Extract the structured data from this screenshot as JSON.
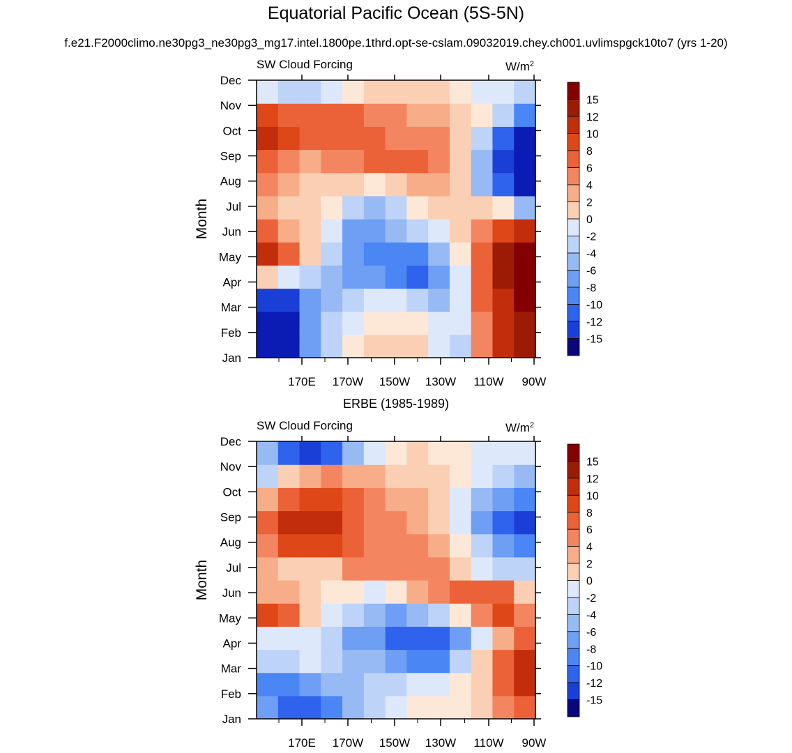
{
  "title": "Equatorial Pacific Ocean (5S-5N)",
  "subtitle": "f.e21.F2000climo.ne30pg3_ne30pg3_mg17.intel.1800pe.1thrd.opt-se-cslam.09032019.chey.ch001.uvlimspgck10to7 (yrs 1-20)",
  "colors": {
    "palette": [
      "#08087a",
      "#0a1cb4",
      "#1a3fd6",
      "#2f63ee",
      "#4b86f5",
      "#6f9ff5",
      "#97baf5",
      "#bdd3f7",
      "#dde9fb",
      "#fde8d8",
      "#fbcfb3",
      "#f8ad89",
      "#f38660",
      "#ec6238",
      "#de4717",
      "#c22e0c",
      "#9c1b05",
      "#820000"
    ]
  },
  "chart_data": [
    {
      "type": "heatmap",
      "panel_label": "",
      "left_label": "SW Cloud Forcing",
      "units_text": "W/m",
      "units_sup": "2",
      "ylabel": "Month",
      "xlabel": "",
      "x_ticks": [
        "170E",
        "170W",
        "150W",
        "130W",
        "110W",
        "90W"
      ],
      "x_range": [
        "150E",
        "90W"
      ],
      "y_ticks": [
        "Jan",
        "Feb",
        "Mar",
        "Apr",
        "May",
        "Jun",
        "Jul",
        "Aug",
        "Sep",
        "Oct",
        "Nov",
        "Dec"
      ],
      "colorbar_levels": [
        "15",
        "12",
        "10",
        "8",
        "6",
        "4",
        "2",
        "0",
        "-2",
        "-4",
        "-6",
        "-8",
        "-10",
        "-12",
        "-15"
      ],
      "x": [
        "150E",
        "160E",
        "170E",
        "180",
        "170W",
        "160W",
        "150W",
        "140W",
        "130W",
        "120W",
        "110W",
        "100W",
        "90W"
      ],
      "rows": [
        [
          -16,
          -16,
          -7,
          -3,
          0,
          2,
          2,
          2,
          -1,
          -3,
          6,
          12,
          16
        ],
        [
          -16,
          -16,
          -8,
          -4,
          -1,
          1,
          1,
          0,
          -2,
          -1,
          7,
          13,
          16
        ],
        [
          -15,
          -14,
          -8,
          -5,
          -3,
          -2,
          -2,
          -4,
          -5,
          -1,
          8,
          14,
          17
        ],
        [
          2,
          -1,
          -4,
          -6,
          -7,
          -8,
          -10,
          -11,
          -8,
          -2,
          9,
          16,
          17
        ],
        [
          13,
          8,
          2,
          -3,
          -8,
          -10,
          -10,
          -9,
          -6,
          0,
          9,
          16,
          17
        ],
        [
          8,
          5,
          3,
          -2,
          -8,
          -8,
          -6,
          -4,
          -2,
          2,
          7,
          11,
          13
        ],
        [
          4,
          3,
          3,
          1,
          -3,
          -5,
          -3,
          0,
          2,
          2,
          2,
          0,
          -6
        ],
        [
          7,
          5,
          3,
          3,
          2,
          0,
          2,
          4,
          4,
          2,
          -6,
          -12,
          -16
        ],
        [
          8,
          6,
          5,
          6,
          7,
          8,
          9,
          8,
          6,
          2,
          -6,
          -14,
          -16
        ],
        [
          13,
          11,
          9,
          9,
          8,
          8,
          7,
          7,
          6,
          3,
          -4,
          -12,
          -16
        ],
        [
          10,
          9,
          9,
          9,
          8,
          7,
          6,
          5,
          4,
          2,
          0,
          -4,
          -10
        ],
        [
          -2,
          -3,
          -3,
          -1,
          1,
          2,
          3,
          3,
          2,
          1,
          -1,
          -2,
          -4
        ]
      ]
    },
    {
      "type": "heatmap",
      "panel_label": "ERBE (1985-1989)",
      "left_label": "SW Cloud Forcing",
      "units_text": "W/m",
      "units_sup": "2",
      "ylabel": "Month",
      "xlabel": "",
      "x_ticks": [
        "170E",
        "170W",
        "150W",
        "130W",
        "110W",
        "90W"
      ],
      "x_range": [
        "150E",
        "90W"
      ],
      "y_ticks": [
        "Jan",
        "Feb",
        "Mar",
        "Apr",
        "May",
        "Jun",
        "Jul",
        "Aug",
        "Sep",
        "Oct",
        "Nov",
        "Dec"
      ],
      "colorbar_levels": [
        "15",
        "12",
        "10",
        "8",
        "6",
        "4",
        "2",
        "0",
        "-2",
        "-4",
        "-6",
        "-8",
        "-10",
        "-12",
        "-15"
      ],
      "x": [
        "150E",
        "160E",
        "170E",
        "180",
        "170W",
        "160W",
        "150W",
        "140W",
        "130W",
        "120W",
        "110W",
        "100W",
        "90W"
      ],
      "rows": [
        [
          -8,
          -12,
          -11,
          -9,
          -6,
          -3,
          -1,
          1,
          1,
          1,
          3,
          6,
          8
        ],
        [
          -9,
          -10,
          -7,
          -5,
          -5,
          -4,
          -3,
          -2,
          -1,
          0,
          3,
          8,
          12
        ],
        [
          -4,
          -3,
          -2,
          -3,
          -5,
          -6,
          -8,
          -9,
          -9,
          -4,
          2,
          8,
          13
        ],
        [
          -2,
          -1,
          -1,
          -3,
          -7,
          -8,
          -11,
          -12,
          -12,
          -8,
          -1,
          5,
          9
        ],
        [
          10,
          8,
          3,
          -2,
          -4,
          -6,
          -7,
          -6,
          -4,
          0,
          6,
          11,
          7
        ],
        [
          4,
          5,
          3,
          1,
          0,
          -2,
          1,
          4,
          6,
          8,
          9,
          9,
          3
        ],
        [
          5,
          3,
          3,
          3,
          6,
          7,
          7,
          7,
          6,
          3,
          -1,
          -3,
          -4
        ],
        [
          7,
          10,
          11,
          10,
          8,
          7,
          6,
          6,
          4,
          0,
          -4,
          -8,
          -9
        ],
        [
          8,
          12,
          12,
          12,
          8,
          7,
          6,
          5,
          3,
          -2,
          -8,
          -11,
          -13
        ],
        [
          5,
          8,
          10,
          11,
          8,
          6,
          5,
          4,
          3,
          -2,
          -6,
          -8,
          -10
        ],
        [
          -4,
          2,
          4,
          6,
          5,
          4,
          3,
          3,
          3,
          1,
          -1,
          -3,
          -5
        ],
        [
          -5,
          -12,
          -14,
          -12,
          -6,
          -1,
          1,
          2,
          1,
          0,
          -1,
          -1,
          -2
        ]
      ]
    }
  ]
}
